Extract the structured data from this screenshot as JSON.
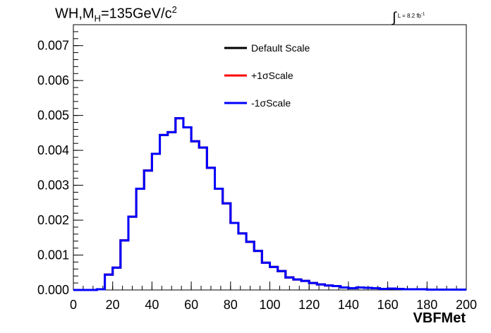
{
  "chart_data": {
    "type": "line",
    "title_prefix": "WH,M",
    "title_sub": "H",
    "title_mid": "=135GeV/c",
    "title_sup": "2",
    "lumi_prefix": "L = 8.2 fb",
    "lumi_sup": "-1",
    "xlabel": "VBFMet",
    "ylabel": "",
    "xlim": [
      0,
      200
    ],
    "ylim": [
      0,
      0.0076
    ],
    "xticks": [
      0,
      20,
      40,
      60,
      80,
      100,
      120,
      140,
      160,
      180,
      200
    ],
    "xtick_labels": [
      "0",
      "20",
      "40",
      "60",
      "80",
      "100",
      "120",
      "140",
      "160",
      "180",
      "200"
    ],
    "yticks": [
      0,
      0.001,
      0.002,
      0.003,
      0.004,
      0.005,
      0.006,
      0.007
    ],
    "ytick_labels": [
      "0.000",
      "0.001",
      "0.002",
      "0.003",
      "0.004",
      "0.005",
      "0.006",
      "0.007"
    ],
    "bin_edges": [
      0,
      4,
      8,
      12,
      16,
      20,
      24,
      28,
      32,
      36,
      40,
      44,
      48,
      52,
      56,
      60,
      64,
      68,
      72,
      76,
      80,
      84,
      88,
      92,
      96,
      100,
      104,
      108,
      112,
      116,
      120,
      124,
      128,
      132,
      136,
      140,
      144,
      148,
      152,
      156,
      160,
      164,
      168,
      172,
      176,
      180,
      184,
      188,
      192,
      196,
      200
    ],
    "legend_position": "top-center",
    "series": [
      {
        "name": "Default Scale",
        "color": "#000000",
        "values": [
          0,
          0,
          0,
          2e-05,
          0.00044,
          0.00064,
          0.00142,
          0.0021,
          0.0029,
          0.00342,
          0.0039,
          0.00444,
          0.00452,
          0.00492,
          0.00466,
          0.00426,
          0.00408,
          0.0035,
          0.0029,
          0.00248,
          0.00192,
          0.00162,
          0.00138,
          0.00112,
          0.00078,
          0.00066,
          0.00054,
          0.00036,
          0.0003,
          0.00026,
          0.0002,
          0.00016,
          0.00013,
          0.00011,
          7e-05,
          5e-05,
          7e-05,
          6e-05,
          5e-05,
          3e-05,
          4e-05,
          3e-05,
          2e-05,
          2e-05,
          2e-05,
          1e-05,
          1e-05,
          1e-05,
          1e-05,
          1e-05
        ]
      },
      {
        "name": "+1σScale",
        "color": "#ff0000",
        "values": [
          0,
          0,
          0,
          2e-05,
          0.00044,
          0.00064,
          0.00142,
          0.0021,
          0.0029,
          0.00342,
          0.0039,
          0.00444,
          0.00452,
          0.00492,
          0.00466,
          0.00426,
          0.00408,
          0.0035,
          0.0029,
          0.00248,
          0.00192,
          0.00162,
          0.00138,
          0.00112,
          0.00078,
          0.00066,
          0.00054,
          0.00036,
          0.0003,
          0.00026,
          0.0002,
          0.00016,
          0.00013,
          0.00011,
          7e-05,
          5e-05,
          7e-05,
          6e-05,
          5e-05,
          3e-05,
          4e-05,
          3e-05,
          2e-05,
          2e-05,
          2e-05,
          1e-05,
          1e-05,
          1e-05,
          1e-05,
          1e-05
        ]
      },
      {
        "name": "-1σScale",
        "color": "#0000ff",
        "values": [
          0,
          0,
          0,
          2e-05,
          0.00044,
          0.00064,
          0.00142,
          0.0021,
          0.0029,
          0.00342,
          0.0039,
          0.00444,
          0.00452,
          0.00492,
          0.00466,
          0.00426,
          0.00408,
          0.0035,
          0.0029,
          0.00248,
          0.00192,
          0.00162,
          0.00138,
          0.00112,
          0.00078,
          0.00066,
          0.00054,
          0.00036,
          0.0003,
          0.00026,
          0.0002,
          0.00016,
          0.00013,
          0.00011,
          7e-05,
          5e-05,
          7e-05,
          6e-05,
          5e-05,
          3e-05,
          4e-05,
          3e-05,
          2e-05,
          2e-05,
          2e-05,
          1e-05,
          1e-05,
          1e-05,
          1e-05,
          1e-05
        ]
      }
    ]
  }
}
